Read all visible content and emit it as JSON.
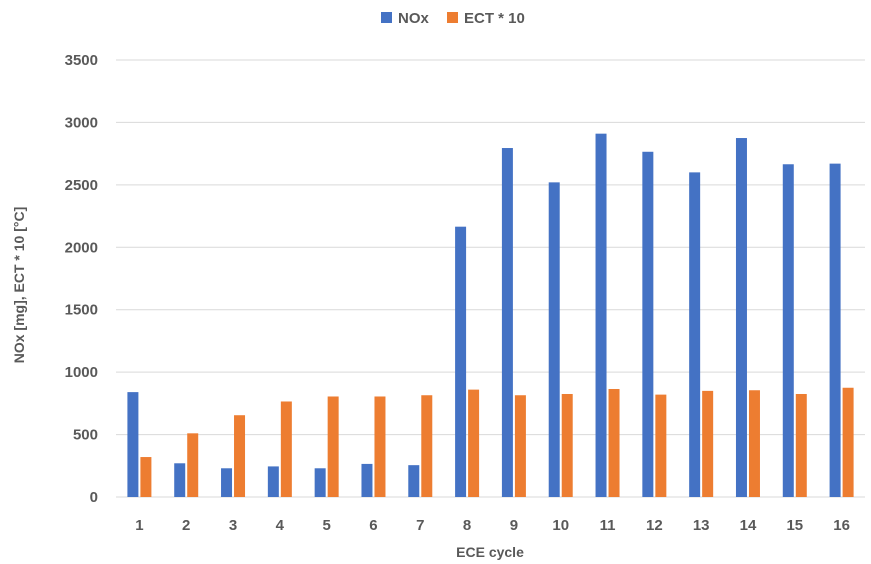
{
  "chart_data": {
    "type": "bar",
    "title": "",
    "xlabel": "ECE cycle",
    "ylabel": "NOx [mg], ECT * 10 [°C]",
    "categories": [
      "1",
      "2",
      "3",
      "4",
      "5",
      "6",
      "7",
      "8",
      "9",
      "10",
      "11",
      "12",
      "13",
      "14",
      "15",
      "16"
    ],
    "series": [
      {
        "name": "NOx",
        "color": "#4472C4",
        "values": [
          840,
          270,
          230,
          245,
          230,
          265,
          255,
          2165,
          2795,
          2520,
          2910,
          2765,
          2600,
          2875,
          2665,
          2670
        ]
      },
      {
        "name": "ECT * 10",
        "color": "#ED7D31",
        "values": [
          320,
          510,
          655,
          765,
          805,
          805,
          815,
          860,
          815,
          825,
          865,
          820,
          850,
          855,
          825,
          875
        ]
      }
    ],
    "ylim": [
      0,
      3500
    ],
    "yticks": [
      "0",
      "500",
      "1000",
      "1500",
      "2000",
      "2500",
      "3000",
      "3500"
    ],
    "grid": true,
    "legend_position": "top-center"
  }
}
